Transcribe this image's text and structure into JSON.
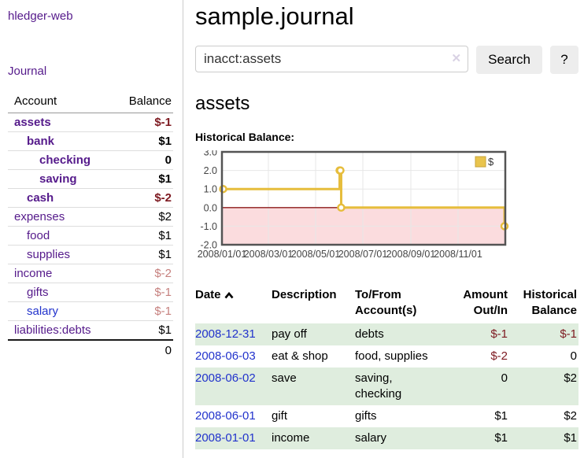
{
  "app": {
    "brand": "hledger-web",
    "nav_journal": "Journal"
  },
  "page": {
    "title": "sample.journal",
    "account_heading": "assets",
    "chart_label": "Historical Balance:"
  },
  "search": {
    "value": "inacct:assets",
    "clear_icon": "✕",
    "button_label": "Search",
    "help_label": "?"
  },
  "sidebar_table": {
    "col_account": "Account",
    "col_balance": "Balance",
    "accounts": [
      {
        "name": "assets",
        "level": 1,
        "bold": true,
        "link": "purple",
        "balance": "$-1",
        "balance_style": "neg-strong"
      },
      {
        "name": "bank",
        "level": 2,
        "bold": true,
        "link": "purple",
        "balance": "$1",
        "balance_style": ""
      },
      {
        "name": "checking",
        "level": 3,
        "bold": true,
        "link": "purple",
        "balance": "0",
        "balance_style": ""
      },
      {
        "name": "saving",
        "level": 3,
        "bold": true,
        "link": "purple",
        "balance": "$1",
        "balance_style": ""
      },
      {
        "name": "cash",
        "level": 2,
        "bold": true,
        "link": "purple",
        "balance": "$-2",
        "balance_style": "neg-strong"
      },
      {
        "name": "expenses",
        "level": 1,
        "bold": false,
        "link": "purple",
        "balance": "$2",
        "balance_style": ""
      },
      {
        "name": "food",
        "level": 2,
        "bold": false,
        "link": "purple",
        "balance": "$1",
        "balance_style": ""
      },
      {
        "name": "supplies",
        "level": 2,
        "bold": false,
        "link": "purple",
        "balance": "$1",
        "balance_style": ""
      },
      {
        "name": "income",
        "level": 1,
        "bold": false,
        "link": "purple",
        "balance": "$-2",
        "balance_style": "neg-soft"
      },
      {
        "name": "gifts",
        "level": 2,
        "bold": false,
        "link": "purple",
        "balance": "$-1",
        "balance_style": "neg-soft"
      },
      {
        "name": "salary",
        "level": 2,
        "bold": false,
        "link": "blue",
        "balance": "$-1",
        "balance_style": "neg-soft"
      },
      {
        "name": "liabilities:debts",
        "level": 1,
        "bold": false,
        "link": "purple",
        "balance": "$1",
        "balance_style": ""
      }
    ],
    "total": "0"
  },
  "register": {
    "headers": {
      "date": "Date",
      "description": "Description",
      "accounts": "To/From Account(s)",
      "amount": "Amount Out/In",
      "balance": "Historical Balance"
    },
    "rows": [
      {
        "date": "2008-12-31",
        "description": "pay off",
        "accounts": "debts",
        "amount": "$-1",
        "amount_neg": true,
        "balance": "$-1",
        "balance_neg": true
      },
      {
        "date": "2008-06-03",
        "description": "eat & shop",
        "accounts": "food, supplies",
        "amount": "$-2",
        "amount_neg": true,
        "balance": "0",
        "balance_neg": false
      },
      {
        "date": "2008-06-02",
        "description": "save",
        "accounts": "saving, checking",
        "amount": "0",
        "amount_neg": false,
        "balance": "$2",
        "balance_neg": false
      },
      {
        "date": "2008-06-01",
        "description": "gift",
        "accounts": "gifts",
        "amount": "$1",
        "amount_neg": false,
        "balance": "$2",
        "balance_neg": false
      },
      {
        "date": "2008-01-01",
        "description": "income",
        "accounts": "salary",
        "amount": "$1",
        "amount_neg": false,
        "balance": "$1",
        "balance_neg": false
      }
    ]
  },
  "chart_data": {
    "type": "line",
    "step": true,
    "title": "Historical Balance",
    "series": [
      {
        "name": "$",
        "points": [
          [
            "2008-01-01",
            1
          ],
          [
            "2008-06-01",
            2
          ],
          [
            "2008-06-02",
            2
          ],
          [
            "2008-06-03",
            0
          ],
          [
            "2008-12-31",
            -1
          ]
        ]
      }
    ],
    "xlim": [
      "2008-01-01",
      "2009-01-01"
    ],
    "ylim": [
      -2,
      3
    ],
    "x_ticks": [
      "2008/01/01",
      "2008/03/01",
      "2008/05/01",
      "2008/07/01",
      "2008/09/01",
      "2008/11/01"
    ],
    "y_ticks": [
      "3.0",
      "2.0",
      "1.0",
      "0.0",
      "-1.0",
      "-2.0"
    ],
    "legend": "$",
    "legend_position": "top-right",
    "grid": true
  },
  "colors": {
    "link_purple": "#551A8B",
    "link_blue": "#2233CC",
    "negative_strong": "#7D1920",
    "negative_soft": "#C6807E",
    "row_stripe_green": "#DFEDDE",
    "chart_line_gold": "#E6BD3C",
    "chart_negative_fill": "#FBDCDE",
    "chart_zero_line": "#8B1A1A",
    "chart_border": "#545454",
    "chart_grid": "#E7E7E7"
  }
}
